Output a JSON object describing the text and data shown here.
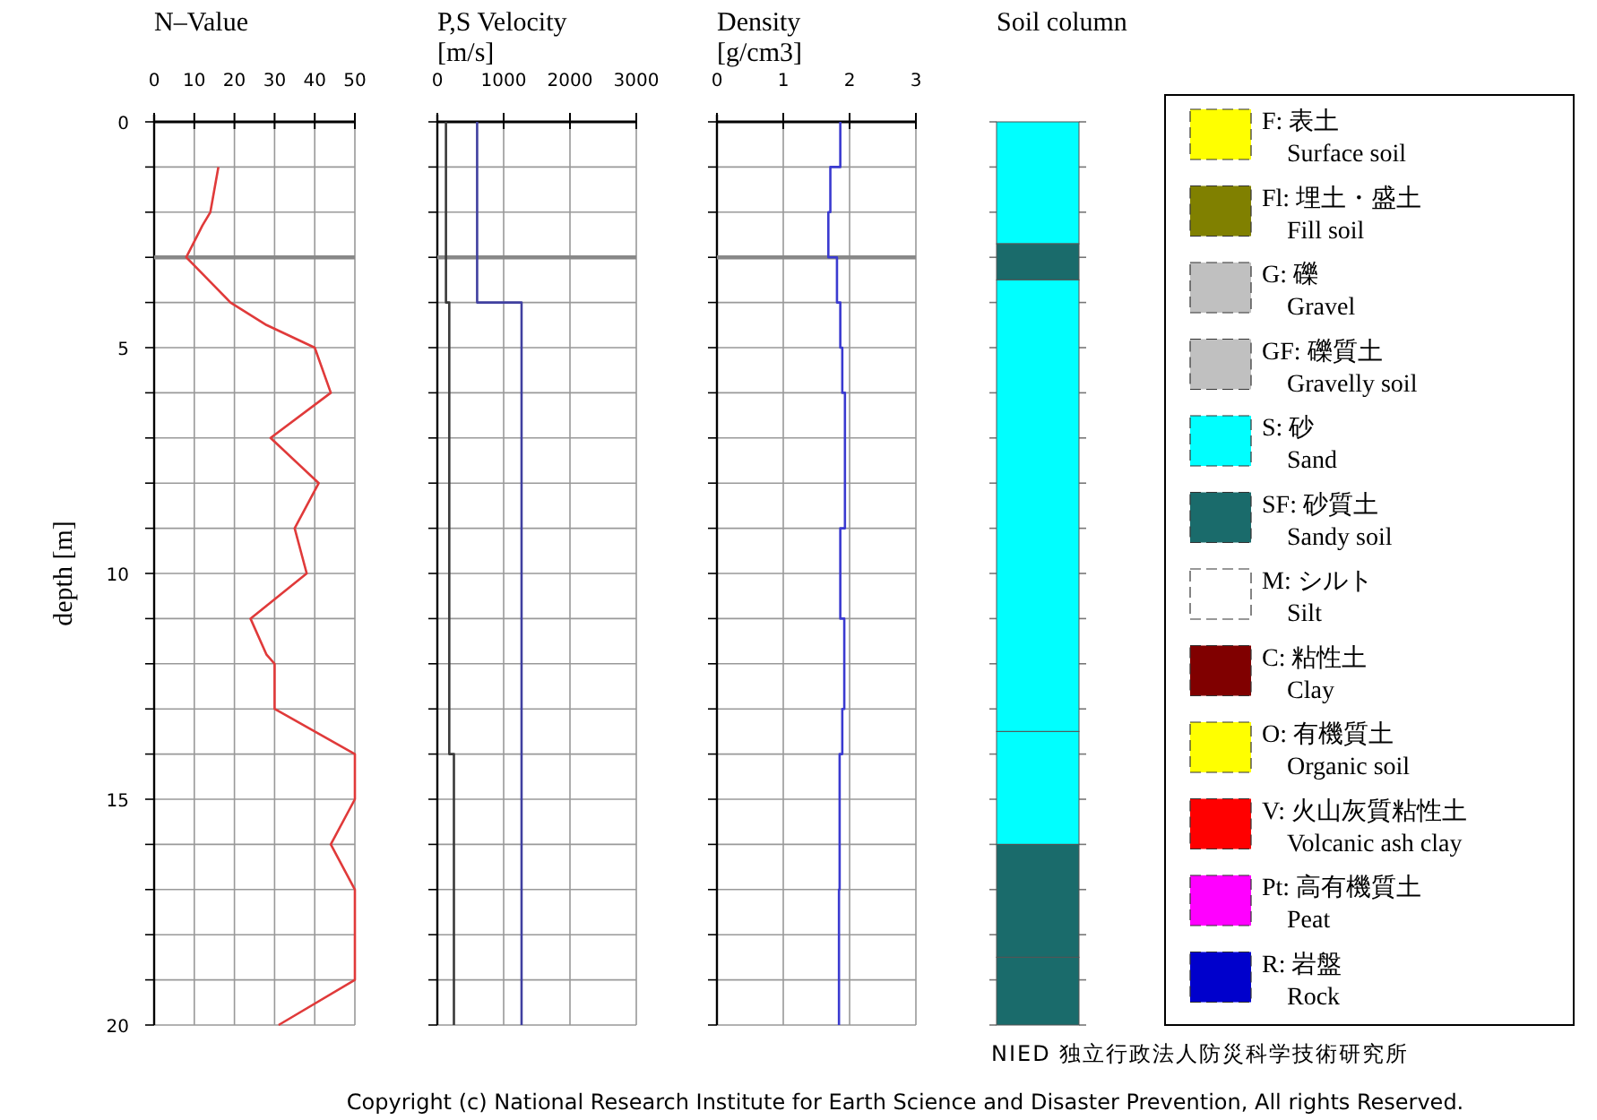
{
  "chart_data": [
    {
      "type": "line",
      "title": "N–Value",
      "ylabel": "depth [m]",
      "xlim": [
        0,
        50
      ],
      "xticks": [
        0,
        10,
        20,
        30,
        40,
        50
      ],
      "ylim": [
        20,
        0
      ],
      "yticks": [
        0,
        {
          "value": 1,
          "label": null
        },
        {
          "value": 2,
          "label": null
        },
        {
          "value": 3,
          "label": null
        },
        {
          "value": 4,
          "label": null
        },
        5,
        {
          "value": 6,
          "label": null
        },
        {
          "value": 7,
          "label": null
        },
        {
          "value": 8,
          "label": null
        },
        {
          "value": 9,
          "label": null
        },
        10,
        {
          "value": 11,
          "label": null
        },
        {
          "value": 12,
          "label": null
        },
        {
          "value": 13,
          "label": null
        },
        {
          "value": 14,
          "label": null
        },
        15,
        {
          "value": 16,
          "label": null
        },
        {
          "value": 17,
          "label": null
        },
        {
          "value": 18,
          "label": null
        },
        {
          "value": 19,
          "label": null
        },
        20
      ],
      "grid": true,
      "ref_lines": [
        {
          "axis": "y",
          "value": 3,
          "color": "#888888"
        }
      ],
      "series": [
        {
          "color": "#e03a3a",
          "x": [
            16,
            14,
            12,
            8,
            19,
            28,
            40,
            44,
            29,
            41,
            35,
            38,
            24,
            28,
            30,
            30,
            50,
            50,
            44,
            50,
            50,
            31
          ],
          "values": [
            1,
            2,
            2.3,
            3,
            4,
            4.5,
            5,
            6,
            7,
            8,
            9,
            10,
            11,
            11.8,
            12,
            13,
            14,
            15,
            16,
            17,
            19,
            20
          ]
        }
      ]
    },
    {
      "type": "line",
      "title": "P,S Velocity",
      "xlabel": "[m/s]",
      "xlim": [
        0,
        3000
      ],
      "xticks": [
        0,
        1000,
        2000,
        3000
      ],
      "ylim": [
        20,
        0
      ],
      "yticks": [
        0,
        {
          "value": 1,
          "label": null
        },
        {
          "value": 2,
          "label": null
        },
        {
          "value": 3,
          "label": null
        },
        {
          "value": 4,
          "label": null
        },
        5,
        {
          "value": 6,
          "label": null
        },
        {
          "value": 7,
          "label": null
        },
        {
          "value": 8,
          "label": null
        },
        {
          "value": 9,
          "label": null
        },
        10,
        {
          "value": 11,
          "label": null
        },
        {
          "value": 12,
          "label": null
        },
        {
          "value": 13,
          "label": null
        },
        {
          "value": 14,
          "label": null
        },
        15,
        {
          "value": 16,
          "label": null
        },
        {
          "value": 17,
          "label": null
        },
        {
          "value": 18,
          "label": null
        },
        {
          "value": 19,
          "label": null
        },
        20
      ],
      "tick_labels": "x",
      "grid": true,
      "ref_lines": [
        {
          "axis": "y",
          "value": 3,
          "color": "#888888"
        }
      ],
      "series": [
        {
          "color": "#3a3a3a",
          "x": [
            130,
            130,
            180,
            180,
            250,
            250
          ],
          "values": [
            0,
            4,
            4,
            14,
            14,
            20
          ]
        },
        {
          "color": "#4040a0",
          "x": [
            600,
            600,
            1270,
            1270
          ],
          "values": [
            0,
            4,
            4,
            20
          ]
        }
      ]
    },
    {
      "type": "line",
      "title": "Density",
      "xlabel": "[g/cm3]",
      "xlim": [
        0,
        3
      ],
      "xticks": [
        0,
        1,
        2,
        3
      ],
      "ylim": [
        20,
        0
      ],
      "yticks": [
        0,
        {
          "value": 1,
          "label": null
        },
        {
          "value": 2,
          "label": null
        },
        {
          "value": 3,
          "label": null
        },
        {
          "value": 4,
          "label": null
        },
        5,
        {
          "value": 6,
          "label": null
        },
        {
          "value": 7,
          "label": null
        },
        {
          "value": 8,
          "label": null
        },
        {
          "value": 9,
          "label": null
        },
        10,
        {
          "value": 11,
          "label": null
        },
        {
          "value": 12,
          "label": null
        },
        {
          "value": 13,
          "label": null
        },
        {
          "value": 14,
          "label": null
        },
        15,
        {
          "value": 16,
          "label": null
        },
        {
          "value": 17,
          "label": null
        },
        {
          "value": 18,
          "label": null
        },
        {
          "value": 19,
          "label": null
        },
        20
      ],
      "tick_labels": "x",
      "grid": true,
      "ref_lines": [
        {
          "axis": "y",
          "value": 3,
          "color": "#888888"
        }
      ],
      "series": [
        {
          "color": "#3a3ad0",
          "x": [
            1.86,
            1.86,
            1.71,
            1.71,
            1.68,
            1.68,
            1.81,
            1.81,
            1.86,
            1.86,
            1.89,
            1.89,
            1.93,
            1.93,
            1.86,
            1.86,
            1.92,
            1.92,
            1.89,
            1.89,
            1.85,
            1.85,
            1.84,
            1.84
          ],
          "values": [
            0,
            1,
            1,
            2,
            2,
            3,
            3,
            4,
            4,
            5,
            5,
            6,
            6,
            9,
            9,
            11,
            11,
            13,
            13,
            14,
            14,
            17,
            17,
            20
          ]
        }
      ]
    },
    {
      "type": "bar",
      "stacked": true,
      "title": "Soil column",
      "categories": [
        null
      ],
      "ylim": [
        20,
        0
      ],
      "yticks": [
        {
          "value": 0,
          "label": null
        },
        {
          "value": 1,
          "label": null
        },
        {
          "value": 2,
          "label": null
        },
        {
          "value": 3,
          "label": null
        },
        {
          "value": 4,
          "label": null
        },
        {
          "value": 5,
          "label": null
        },
        {
          "value": 6,
          "label": null
        },
        {
          "value": 7,
          "label": null
        },
        {
          "value": 8,
          "label": null
        },
        {
          "value": 9,
          "label": null
        },
        {
          "value": 10,
          "label": null
        },
        {
          "value": 11,
          "label": null
        },
        {
          "value": 12,
          "label": null
        },
        {
          "value": 13,
          "label": null
        },
        {
          "value": 14,
          "label": null
        },
        {
          "value": 15,
          "label": null
        },
        {
          "value": 16,
          "label": null
        },
        {
          "value": 17,
          "label": null
        },
        {
          "value": 18,
          "label": null
        },
        {
          "value": 19,
          "label": null
        },
        {
          "value": 20,
          "label": null
        }
      ],
      "tick_labels": false,
      "annotations": [
        "NIED 独立行政法人防災科学技術研究所",
        "Copyright (c) National Research Institute for Earth Science and Disaster Prevention, All rights Reserved."
      ],
      "series": [
        {
          "color": "#00ffff",
          "values": [
            2.7
          ]
        },
        {
          "color": "#1a6b6b",
          "values": [
            0.8
          ]
        },
        {
          "color": "#00ffff",
          "values": [
            10
          ]
        },
        {
          "color": "#00ffff",
          "values": [
            2.5
          ]
        },
        {
          "color": "#1a6b6b",
          "values": [
            2.5
          ]
        },
        {
          "color": "#1a6b6b",
          "values": [
            1.5
          ]
        }
      ]
    },
    {
      "type": "other",
      "legend": "right",
      "series": [
        {
          "name": "F: 表土",
          "color": "#ffff00"
        },
        {
          "name": "Fl: 埋土・盛土",
          "color": "#808000"
        },
        {
          "name": "G: 礫",
          "color": "#c0c0c0"
        },
        {
          "name": "GF: 礫質土",
          "color": "#c0c0c0"
        },
        {
          "name": "S: 砂",
          "color": "#00ffff"
        },
        {
          "name": "SF: 砂質土",
          "color": "#1a6b6b"
        },
        {
          "name": "M: シルト",
          "color": "#ffffff"
        },
        {
          "name": "C: 粘性土",
          "color": "#800000"
        },
        {
          "name": "O: 有機質土",
          "color": "#ffff00"
        },
        {
          "name": "V: 火山灰質粘性土",
          "color": "#ff0000"
        },
        {
          "name": "Pt: 高有機質土",
          "color": "#ff00ff"
        },
        {
          "name": "R: 岩盤",
          "color": "#0000cc"
        }
      ],
      "annotations": [
        "Surface soil",
        "Fill soil",
        "Gravel",
        "Gravelly soil",
        "Sand",
        "Sandy soil",
        "Silt",
        "Clay",
        "Organic soil",
        "Volcanic ash clay",
        "Peat",
        "Rock"
      ]
    }
  ]
}
